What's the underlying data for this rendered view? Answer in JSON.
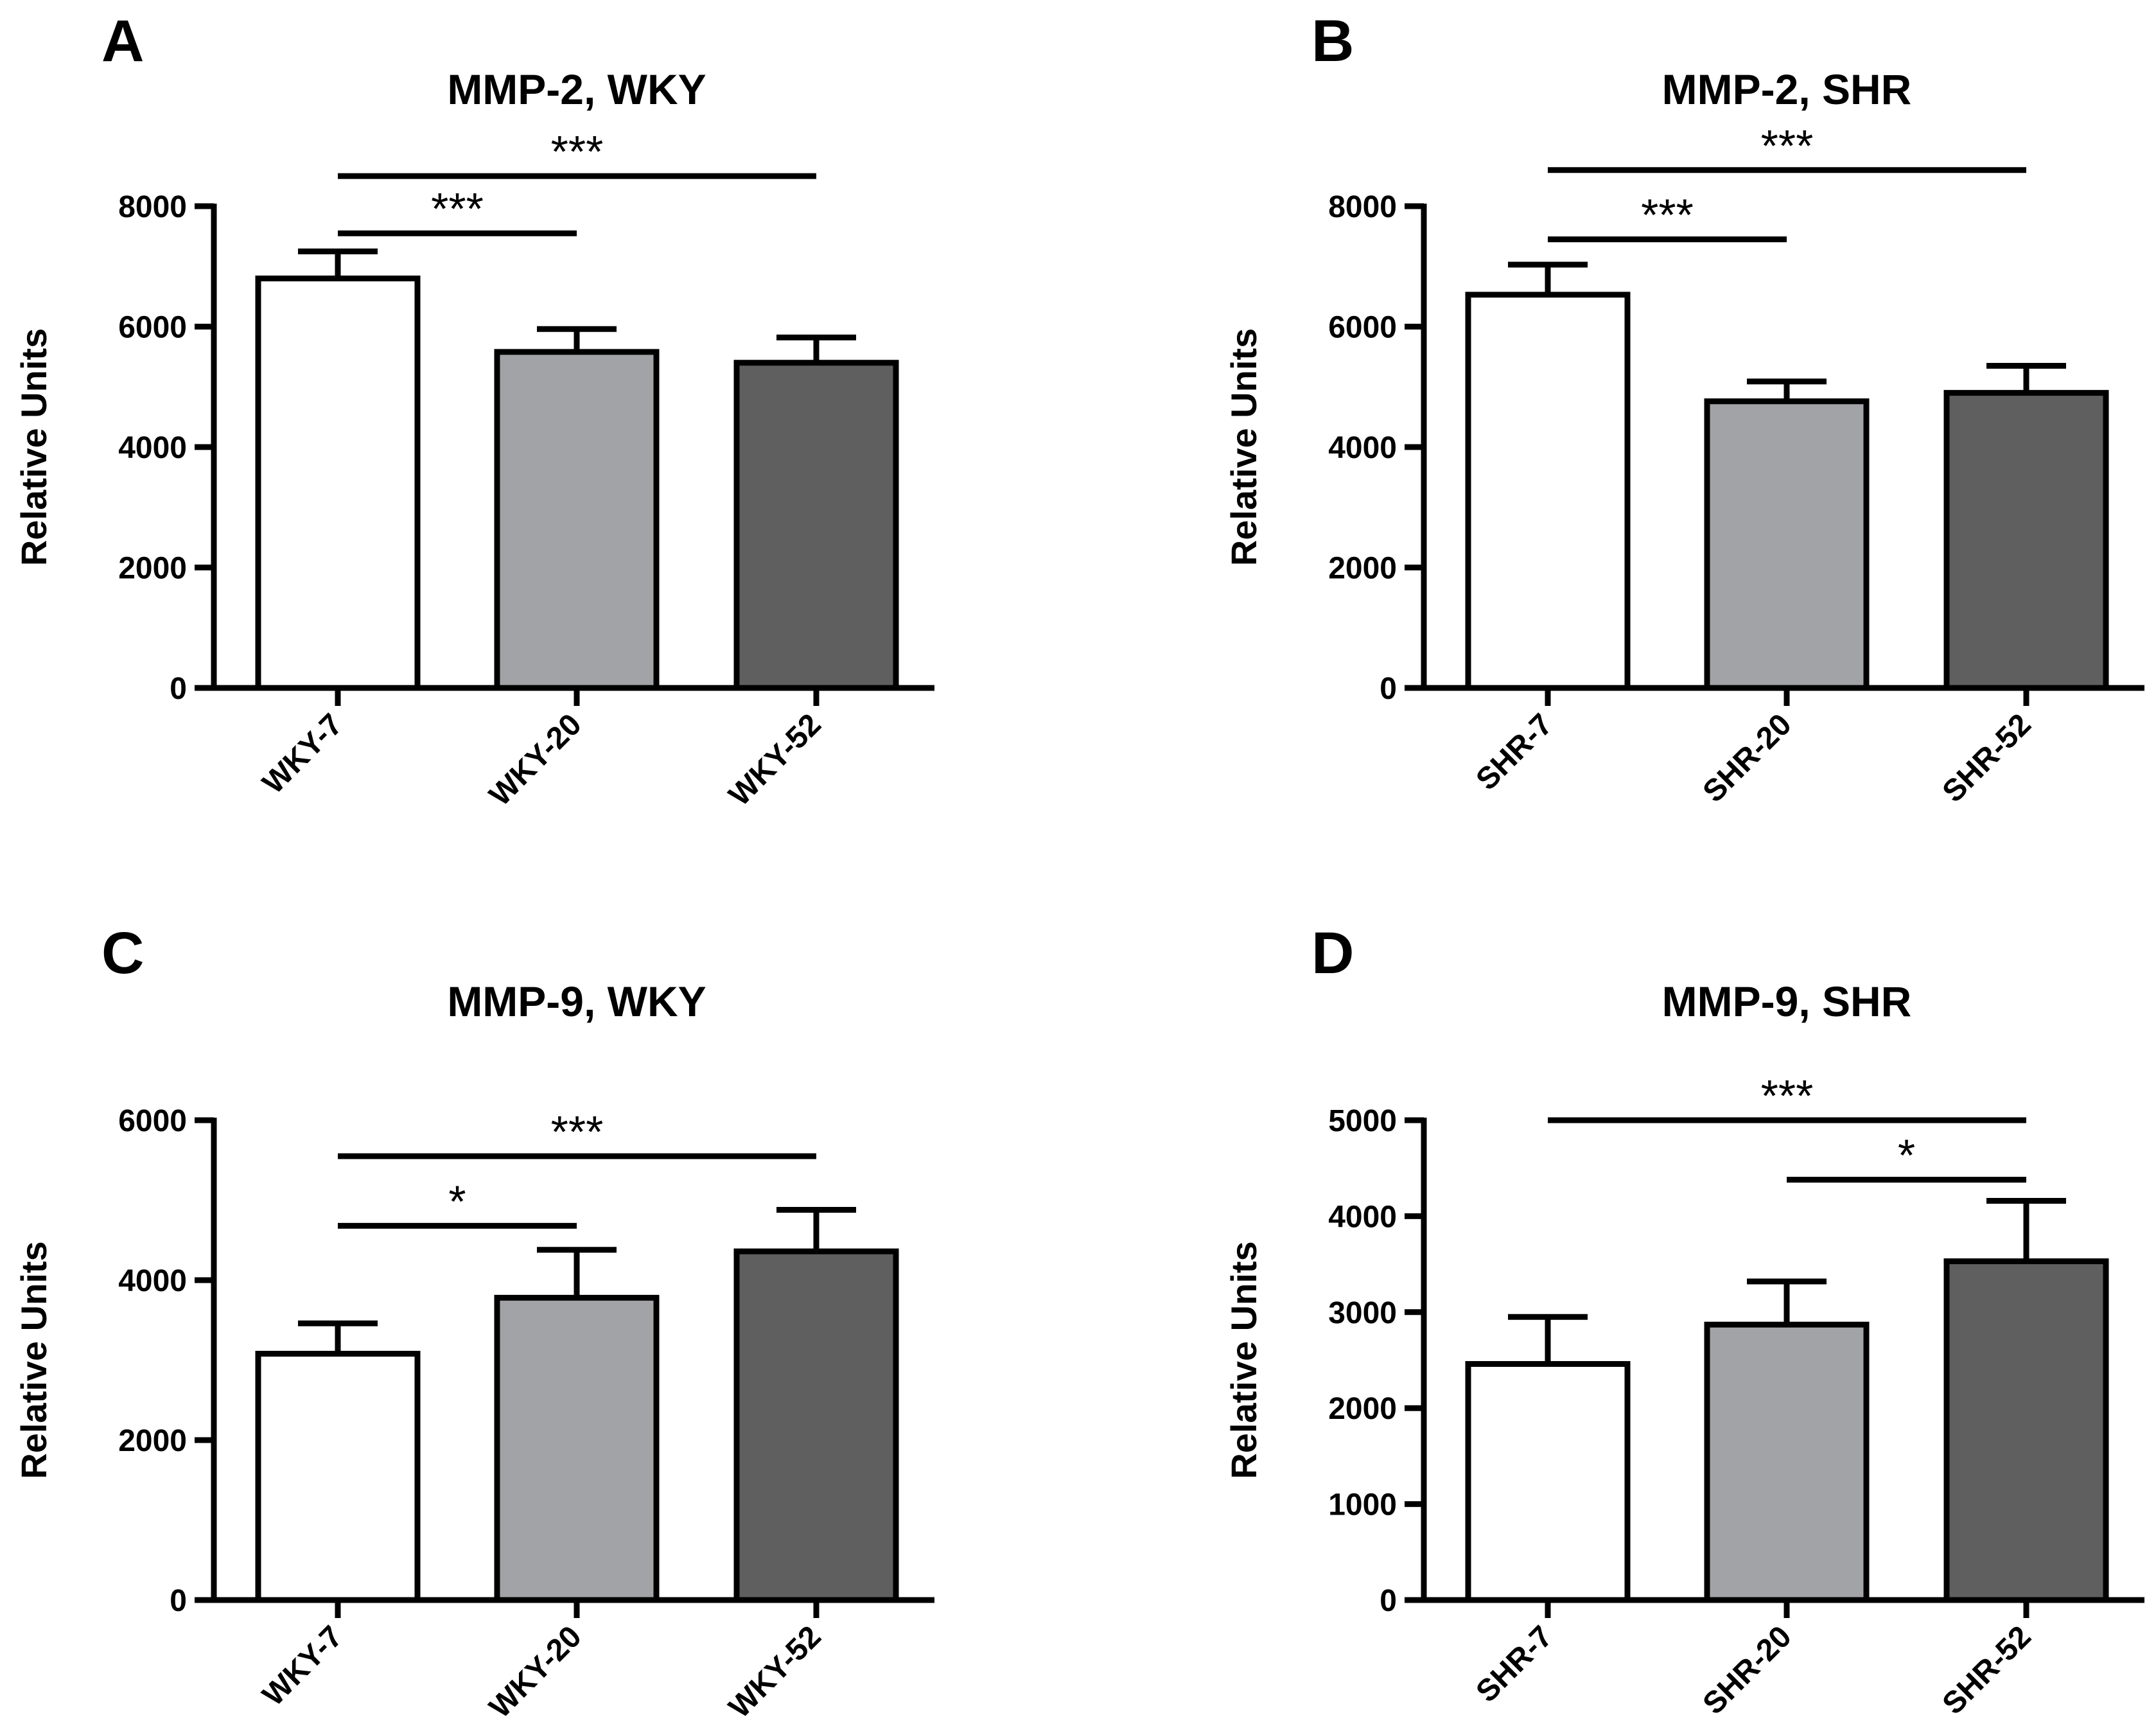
{
  "chart_data": [
    {
      "panel": "A",
      "type": "bar",
      "title": "MMP-2, WKY",
      "xlabel": "",
      "ylabel": "Relative Units",
      "ylim": [
        0,
        8000
      ],
      "yticks": [
        0,
        2000,
        4000,
        6000,
        8000
      ],
      "categories": [
        "WKY-7",
        "WKY-20",
        "WKY-52"
      ],
      "values": [
        6800,
        5580,
        5400
      ],
      "errors": [
        450,
        380,
        420
      ],
      "colors": [
        "#ffffff",
        "#a2a3a7",
        "#5f5f5f"
      ],
      "significance": [
        {
          "from": 0,
          "to": 1,
          "label": "***",
          "level": 7550
        },
        {
          "from": 0,
          "to": 2,
          "label": "***",
          "level": 8500
        }
      ]
    },
    {
      "panel": "B",
      "type": "bar",
      "title": "MMP-2, SHR",
      "xlabel": "",
      "ylabel": "Relative Units",
      "ylim": [
        0,
        8000
      ],
      "yticks": [
        0,
        2000,
        4000,
        6000,
        8000
      ],
      "categories": [
        "SHR-7",
        "SHR-20",
        "SHR-52"
      ],
      "values": [
        6530,
        4760,
        4900
      ],
      "errors": [
        500,
        330,
        450
      ],
      "colors": [
        "#ffffff",
        "#a2a3a7",
        "#5f5f5f"
      ],
      "significance": [
        {
          "from": 0,
          "to": 1,
          "label": "***",
          "level": 7450
        },
        {
          "from": 0,
          "to": 2,
          "label": "***",
          "level": 8600
        }
      ]
    },
    {
      "panel": "C",
      "type": "bar",
      "title": "MMP-9, WKY",
      "xlabel": "",
      "ylabel": "Relative Units",
      "ylim": [
        0,
        6000
      ],
      "yticks": [
        0,
        2000,
        4000,
        6000
      ],
      "categories": [
        "WKY-7",
        "WKY-20",
        "WKY-52"
      ],
      "values": [
        3080,
        3780,
        4360
      ],
      "errors": [
        380,
        600,
        520
      ],
      "colors": [
        "#ffffff",
        "#a2a3a7",
        "#5f5f5f"
      ],
      "significance": [
        {
          "from": 0,
          "to": 1,
          "label": "*",
          "level": 4680
        },
        {
          "from": 0,
          "to": 2,
          "label": "***",
          "level": 5550
        }
      ]
    },
    {
      "panel": "D",
      "type": "bar",
      "title": "MMP-9, SHR",
      "xlabel": "",
      "ylabel": "Relative Units",
      "ylim": [
        0,
        5000
      ],
      "yticks": [
        0,
        1000,
        2000,
        3000,
        4000,
        5000
      ],
      "categories": [
        "SHR-7",
        "SHR-20",
        "SHR-52"
      ],
      "values": [
        2460,
        2870,
        3530
      ],
      "errors": [
        490,
        450,
        630
      ],
      "colors": [
        "#ffffff",
        "#a2a3a7",
        "#5f5f5f"
      ],
      "significance": [
        {
          "from": 1,
          "to": 2,
          "label": "*",
          "level": 4380
        },
        {
          "from": 0,
          "to": 2,
          "label": "***",
          "level": 5000
        }
      ]
    }
  ]
}
